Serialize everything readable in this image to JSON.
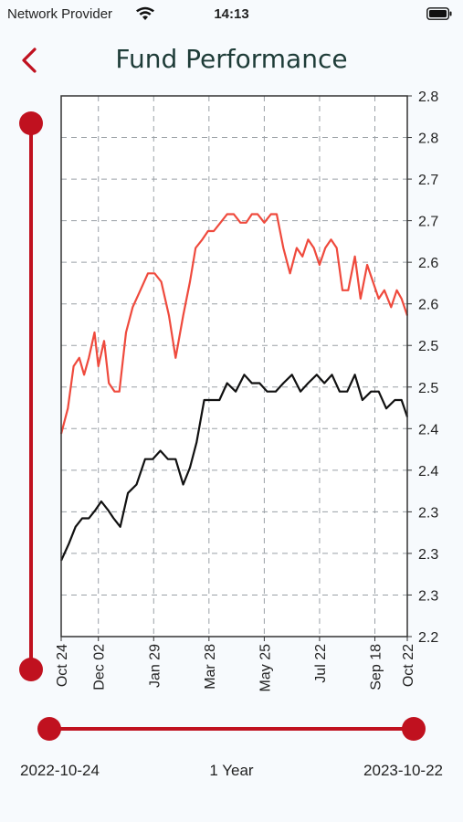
{
  "status_bar": {
    "carrier": "Network Provider",
    "time": "14:13"
  },
  "header": {
    "title": "Fund Performance"
  },
  "colors": {
    "accent": "#c0111f",
    "series_red": "#ef4a3d",
    "series_black": "#111111",
    "grid": "#9aa0a6"
  },
  "chart_data": {
    "type": "line",
    "x_ticks": [
      "Oct 24",
      "Dec 02",
      "Jan 29",
      "Mar 28",
      "May 25",
      "Jul 22",
      "Sep 18",
      "Oct 22"
    ],
    "x_tick_days": [
      0,
      39,
      97,
      155,
      213,
      271,
      329,
      363
    ],
    "x_range_days": [
      0,
      363
    ],
    "y_ticks": [
      "2.2",
      "2.3",
      "2.3",
      "2.3",
      "2.4",
      "2.4",
      "2.5",
      "2.5",
      "2.6",
      "2.6",
      "2.7",
      "2.7",
      "2.8",
      "2.8"
    ],
    "ylim": [
      2.2,
      2.84
    ],
    "grid": true,
    "series": [
      {
        "color": "#ef4a3d",
        "x": [
          0,
          7,
          13,
          19,
          24,
          29,
          35,
          39,
          45,
          50,
          56,
          61,
          68,
          75,
          83,
          91,
          98,
          105,
          113,
          120,
          128,
          135,
          141,
          148,
          154,
          160,
          167,
          174,
          181,
          188,
          194,
          200,
          206,
          213,
          220,
          226,
          233,
          240,
          247,
          253,
          259,
          265,
          271,
          277,
          283,
          289,
          295,
          301,
          308,
          314,
          321,
          327,
          333,
          339,
          346,
          352,
          357,
          363
        ],
        "values": [
          2.44,
          2.47,
          2.52,
          2.53,
          2.51,
          2.53,
          2.56,
          2.52,
          2.55,
          2.5,
          2.49,
          2.49,
          2.56,
          2.59,
          2.61,
          2.63,
          2.63,
          2.62,
          2.58,
          2.53,
          2.58,
          2.62,
          2.66,
          2.67,
          2.68,
          2.68,
          2.69,
          2.7,
          2.7,
          2.69,
          2.69,
          2.7,
          2.7,
          2.69,
          2.7,
          2.7,
          2.66,
          2.63,
          2.66,
          2.65,
          2.67,
          2.66,
          2.64,
          2.66,
          2.67,
          2.66,
          2.61,
          2.61,
          2.65,
          2.6,
          2.64,
          2.62,
          2.6,
          2.61,
          2.59,
          2.61,
          2.6,
          2.58
        ]
      },
      {
        "color": "#111111",
        "x": [
          0,
          8,
          15,
          22,
          29,
          36,
          42,
          49,
          55,
          62,
          70,
          79,
          88,
          96,
          104,
          112,
          120,
          128,
          135,
          142,
          150,
          158,
          166,
          174,
          183,
          192,
          200,
          208,
          216,
          225,
          233,
          242,
          251,
          259,
          268,
          276,
          284,
          292,
          300,
          308,
          316,
          325,
          333,
          341,
          350,
          357,
          363
        ],
        "values": [
          2.29,
          2.31,
          2.33,
          2.34,
          2.34,
          2.35,
          2.36,
          2.35,
          2.34,
          2.33,
          2.37,
          2.38,
          2.41,
          2.41,
          2.42,
          2.41,
          2.41,
          2.38,
          2.4,
          2.43,
          2.48,
          2.48,
          2.48,
          2.5,
          2.49,
          2.51,
          2.5,
          2.5,
          2.49,
          2.49,
          2.5,
          2.51,
          2.49,
          2.5,
          2.51,
          2.5,
          2.51,
          2.49,
          2.49,
          2.51,
          2.48,
          2.49,
          2.49,
          2.47,
          2.48,
          2.48,
          2.46
        ]
      }
    ]
  },
  "range": {
    "start": "2022-10-24",
    "period": "1 Year",
    "end": "2023-10-22"
  }
}
